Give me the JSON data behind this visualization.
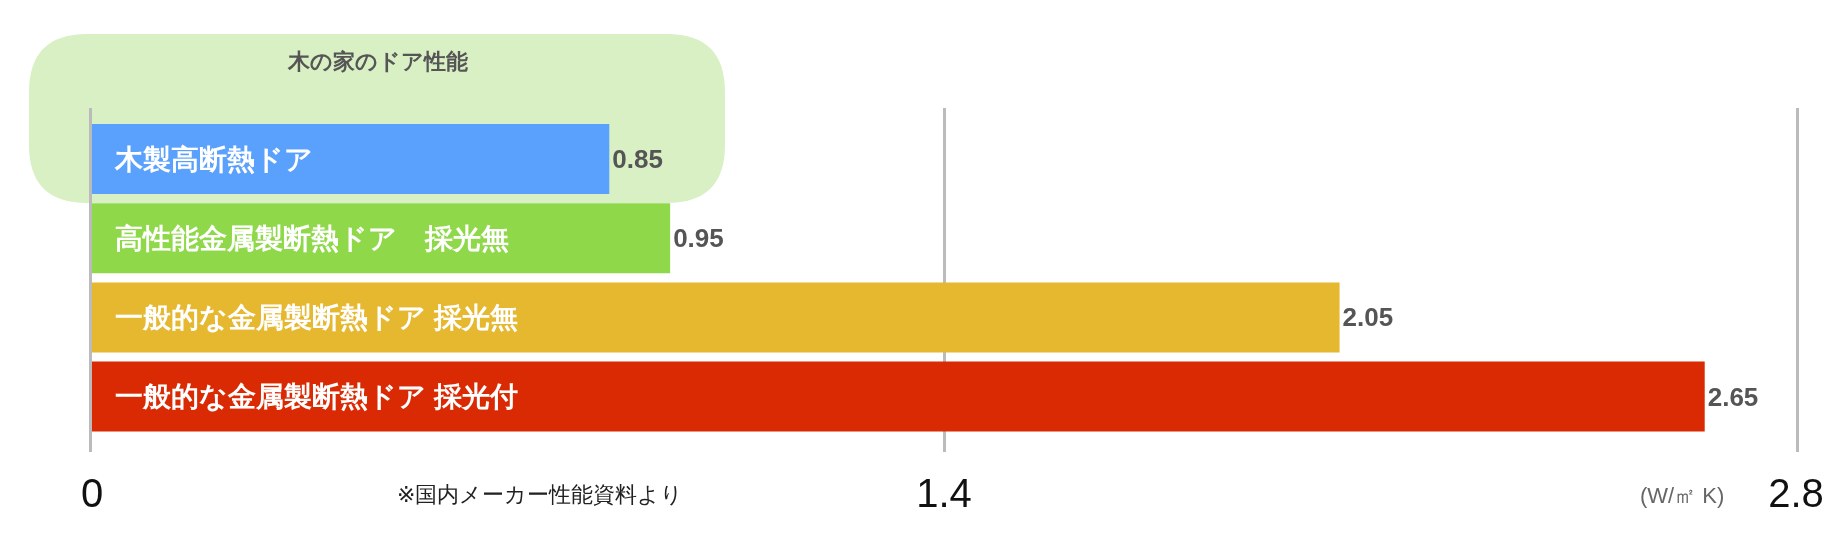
{
  "chart_data": {
    "type": "bar",
    "orientation": "horizontal",
    "categories": [
      "木製高断熱ドア",
      "高性能金属製断熱ドア　採光無",
      "一般的な金属製断熱ドア 採光無",
      "一般的な金属製断熱ドア 採光付"
    ],
    "values": [
      0.85,
      0.95,
      2.05,
      2.65
    ],
    "colors": [
      "#5aa0fd",
      "#8fd84a",
      "#e6b830",
      "#da2a04"
    ],
    "data_labels": true,
    "xlim": [
      0,
      2.8
    ],
    "xticks": [
      0,
      1.4,
      2.8
    ],
    "xlabel": "(W/㎡ K)",
    "grid": "x",
    "annotations": [
      "木の家のドア性能",
      "※国内メーカー性能資料より"
    ]
  }
}
